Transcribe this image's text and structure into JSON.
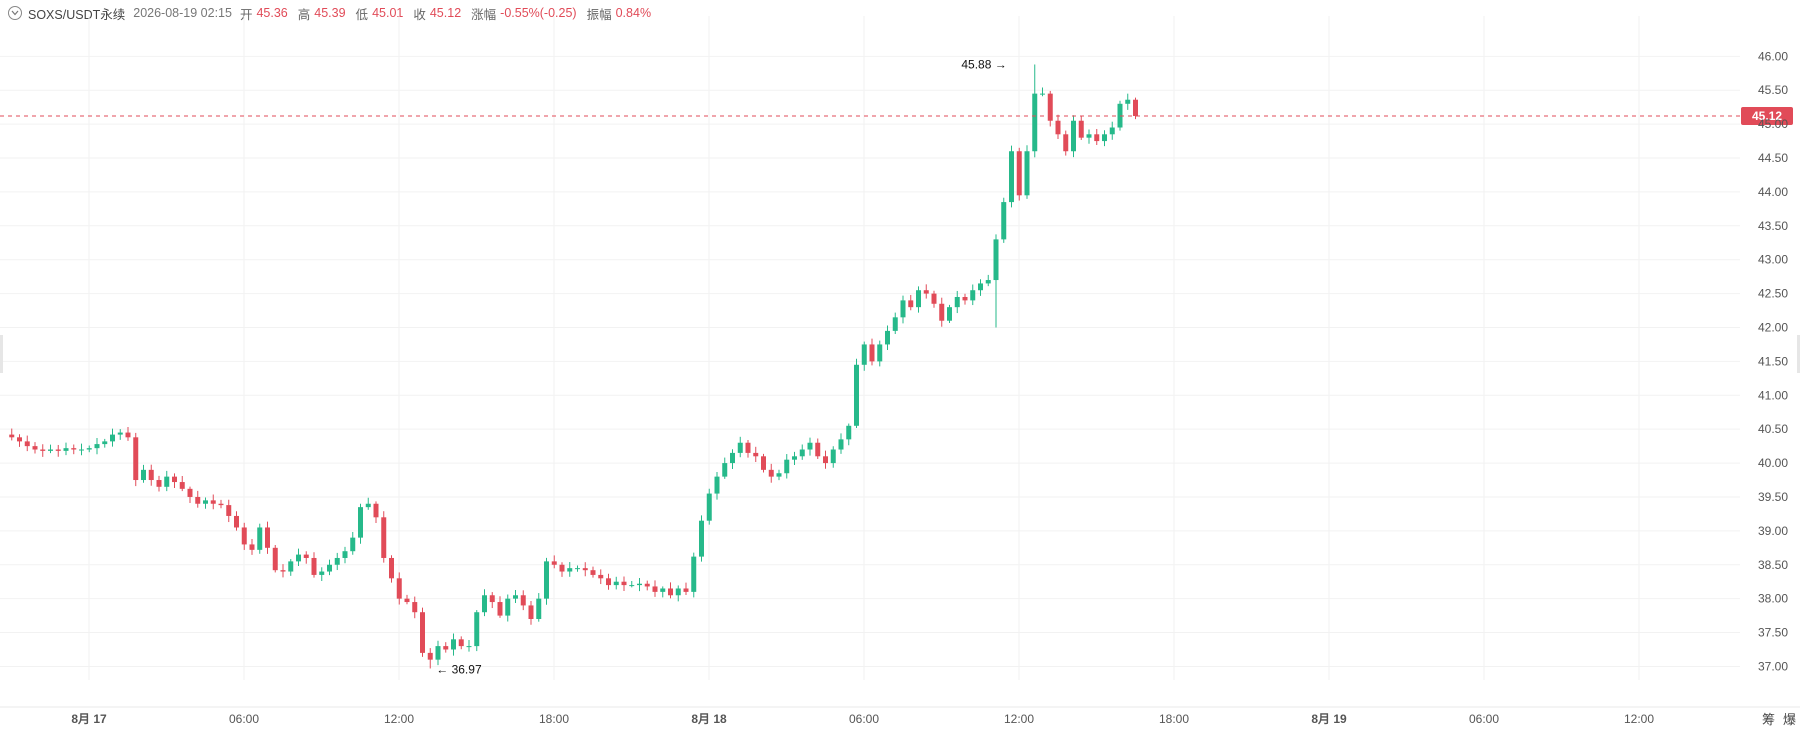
{
  "header": {
    "symbol": "SOXS/USDT永续",
    "datetime": "2026-08-19 02:15",
    "open_label": "开",
    "open": "45.36",
    "high_label": "高",
    "high": "45.39",
    "low_label": "低",
    "low": "45.01",
    "close_label": "收",
    "close": "45.12",
    "change_label": "涨幅",
    "change": "-0.55%(-0.25)",
    "amp_label": "振幅",
    "amp": "0.84%"
  },
  "footer": {
    "btn1": "筹",
    "btn2": "爆"
  },
  "colors": {
    "up": "#26b98a",
    "down": "#e14b58",
    "grid": "#f2f2f2",
    "axis_text": "#555555"
  },
  "chart_data": {
    "type": "candlestick",
    "x_ticks": [
      "8月 17",
      "06:00",
      "12:00",
      "18:00",
      "8月 18",
      "06:00",
      "12:00",
      "18:00",
      "8月 19",
      "06:00",
      "12:00"
    ],
    "x_ticks_bold": [
      true,
      false,
      false,
      false,
      true,
      false,
      false,
      false,
      true,
      false,
      false
    ],
    "y_ticks": [
      "37.00",
      "37.50",
      "38.00",
      "38.50",
      "39.00",
      "39.50",
      "40.00",
      "40.50",
      "41.00",
      "41.50",
      "42.00",
      "42.50",
      "43.00",
      "43.50",
      "44.00",
      "44.50",
      "45.00",
      "45.50",
      "46.00"
    ],
    "ylim": [
      36.8,
      46.3
    ],
    "last_price": "45.12",
    "max_label": "45.88",
    "min_label": "36.97",
    "path": [
      40.42,
      40.38,
      40.32,
      40.25,
      40.2,
      40.18,
      40.2,
      40.18,
      40.22,
      40.2,
      40.2,
      40.22,
      40.28,
      40.32,
      40.42,
      40.45,
      40.38,
      39.75,
      39.9,
      39.75,
      39.65,
      39.8,
      39.72,
      39.62,
      39.5,
      39.4,
      39.45,
      39.4,
      39.38,
      39.22,
      39.05,
      38.8,
      38.72,
      39.05,
      38.75,
      38.42,
      38.4,
      38.55,
      38.65,
      38.6,
      38.35,
      38.4,
      38.5,
      38.6,
      38.7,
      38.9,
      39.35,
      39.4,
      39.2,
      38.6,
      38.3,
      38.0,
      37.95,
      37.8,
      37.2,
      37.1,
      37.3,
      37.25,
      37.4,
      37.3,
      37.3,
      37.8,
      38.05,
      37.95,
      37.75,
      38.0,
      38.05,
      37.9,
      37.7,
      38.0,
      38.55,
      38.5,
      38.4,
      38.45,
      38.45,
      38.42,
      38.35,
      38.3,
      38.2,
      38.25,
      38.2,
      38.2,
      38.22,
      38.18,
      38.1,
      38.15,
      38.05,
      38.15,
      38.1,
      38.62,
      39.15,
      39.55,
      39.8,
      40.0,
      40.15,
      40.3,
      40.15,
      40.1,
      39.9,
      39.8,
      39.85,
      40.05,
      40.1,
      40.2,
      40.3,
      40.1,
      40.0,
      40.2,
      40.35,
      40.55,
      41.45,
      41.75,
      41.5,
      41.75,
      41.95,
      42.15,
      42.4,
      42.3,
      42.55,
      42.5,
      42.35,
      42.1,
      42.3,
      42.45,
      42.4,
      42.55,
      42.65,
      42.7,
      43.3,
      43.85,
      44.6,
      43.95,
      44.6,
      45.45,
      45.45,
      45.05,
      44.85,
      44.6,
      45.05,
      44.8,
      44.85,
      44.75,
      44.85,
      44.95,
      45.3,
      45.36,
      45.12
    ]
  }
}
